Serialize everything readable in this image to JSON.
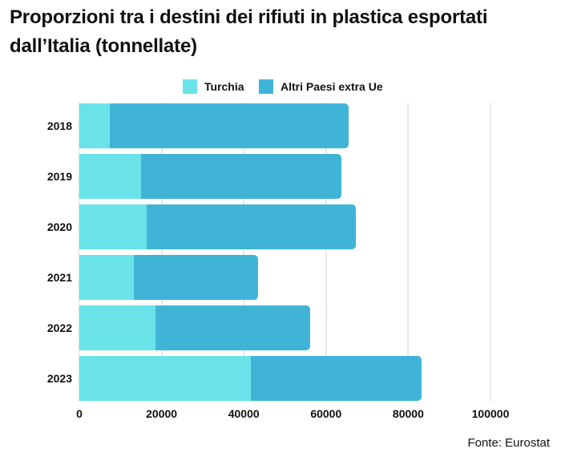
{
  "title": "Proporzioni tra i destini dei rifiuti in plastica esportati dall’Italia (tonnellate)",
  "legend": [
    {
      "label": "Turchia",
      "color": "#6ae3e8"
    },
    {
      "label": "Altri Paesi extra Ue",
      "color": "#40b4d6"
    }
  ],
  "source": "Fonte: Eurostat",
  "chart_data": {
    "type": "bar",
    "orientation": "horizontal",
    "stacked": true,
    "title": "Proporzioni tra i destini dei rifiuti in plastica esportati dall’Italia (tonnellate)",
    "xlabel": "",
    "ylabel": "",
    "categories": [
      "2018",
      "2019",
      "2020",
      "2021",
      "2022",
      "2023"
    ],
    "series": [
      {
        "name": "Turchia",
        "color": "#6ae3e8",
        "values": [
          7500,
          15000,
          16400,
          13200,
          18500,
          41700
        ]
      },
      {
        "name": "Altri Paesi extra Ue",
        "color": "#40b4d6",
        "values": [
          58000,
          48700,
          50800,
          30300,
          37600,
          41500
        ]
      }
    ],
    "xlim": [
      0,
      100000
    ],
    "xticks": [
      "0",
      "20000",
      "40000",
      "60000",
      "80000",
      "100000"
    ],
    "grid": true,
    "legend_position": "top",
    "source": "Fonte: Eurostat"
  }
}
